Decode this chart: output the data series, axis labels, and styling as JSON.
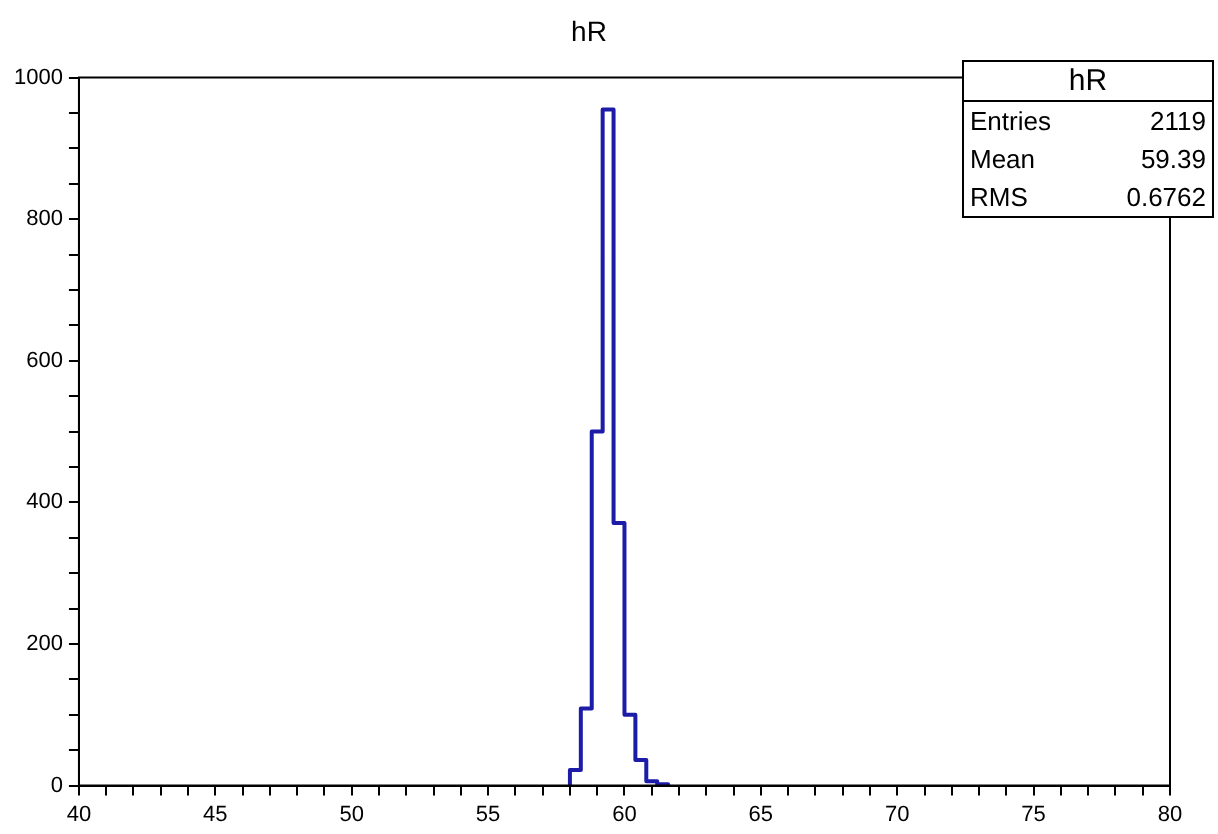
{
  "chart_data": {
    "type": "histogram",
    "title": "hR",
    "bins": [
      58.0,
      58.4,
      58.8,
      59.2,
      59.6,
      60.0,
      60.4,
      60.8,
      61.2,
      61.6
    ],
    "values": [
      22,
      109,
      500,
      955,
      371,
      100,
      36,
      6,
      2
    ],
    "color": "#1c1ca8",
    "xlim": [
      40,
      80
    ],
    "xticks": [
      40,
      {
        "value": 41,
        "label": null
      },
      {
        "value": 42,
        "label": null
      },
      {
        "value": 43,
        "label": null
      },
      {
        "value": 44,
        "label": null
      },
      45,
      {
        "value": 46,
        "label": null
      },
      {
        "value": 47,
        "label": null
      },
      {
        "value": 48,
        "label": null
      },
      {
        "value": 49,
        "label": null
      },
      50,
      {
        "value": 51,
        "label": null
      },
      {
        "value": 52,
        "label": null
      },
      {
        "value": 53,
        "label": null
      },
      {
        "value": 54,
        "label": null
      },
      55,
      {
        "value": 56,
        "label": null
      },
      {
        "value": 57,
        "label": null
      },
      {
        "value": 58,
        "label": null
      },
      {
        "value": 59,
        "label": null
      },
      60,
      {
        "value": 61,
        "label": null
      },
      {
        "value": 62,
        "label": null
      },
      {
        "value": 63,
        "label": null
      },
      {
        "value": 64,
        "label": null
      },
      65,
      {
        "value": 66,
        "label": null
      },
      {
        "value": 67,
        "label": null
      },
      {
        "value": 68,
        "label": null
      },
      {
        "value": 69,
        "label": null
      },
      70,
      {
        "value": 71,
        "label": null
      },
      {
        "value": 72,
        "label": null
      },
      {
        "value": 73,
        "label": null
      },
      {
        "value": 74,
        "label": null
      },
      75,
      {
        "value": 76,
        "label": null
      },
      {
        "value": 77,
        "label": null
      },
      {
        "value": 78,
        "label": null
      },
      {
        "value": 79,
        "label": null
      },
      80
    ],
    "ylim": [
      0,
      1000
    ],
    "yticks": [
      0,
      {
        "value": 50,
        "label": null
      },
      {
        "value": 100,
        "label": null
      },
      {
        "value": 150,
        "label": null
      },
      200,
      {
        "value": 250,
        "label": null
      },
      {
        "value": 300,
        "label": null
      },
      {
        "value": 350,
        "label": null
      },
      400,
      {
        "value": 450,
        "label": null
      },
      {
        "value": 500,
        "label": null
      },
      {
        "value": 550,
        "label": null
      },
      600,
      {
        "value": 650,
        "label": null
      },
      {
        "value": 700,
        "label": null
      },
      {
        "value": 750,
        "label": null
      },
      800,
      {
        "value": 850,
        "label": null
      },
      {
        "value": 900,
        "label": null
      },
      {
        "value": 950,
        "label": null
      },
      1000
    ],
    "grid": false,
    "annotations": [
      "hR",
      "Entries",
      "2119",
      "Mean",
      "59.39",
      "RMS",
      "0.6762"
    ]
  }
}
